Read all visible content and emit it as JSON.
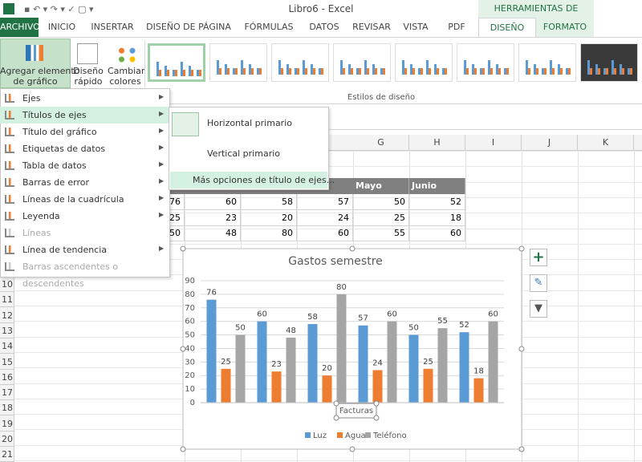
{
  "window": {
    "title": "Libro6 - Excel",
    "tools_header": "HERRAMIENTAS DE GRÁFICOS"
  },
  "tabs": [
    "ARCHIVO",
    "INICIO",
    "INSERTAR",
    "DISEÑO DE PÁGINA",
    "FÓRMULAS",
    "DATOS",
    "REVISAR",
    "VISTA",
    "PDF",
    "DISEÑO",
    "FORMATO"
  ],
  "ribbon": {
    "buttons": [
      [
        "Agregar elemento",
        "de gráfico"
      ],
      [
        "Diseño",
        "rápido"
      ],
      [
        "Cambiar",
        "colores"
      ]
    ],
    "group_label": "Estilos de diseño"
  },
  "menu": {
    "items": [
      "Ejes",
      "Títulos de ejes",
      "Título del gráfico",
      "Etiquetas de datos",
      "Tabla de datos",
      "Barras de error",
      "Líneas de la cuadrícula",
      "Leyenda",
      "Líneas",
      "Línea de tendencia",
      "Barras ascendentes o descendentes"
    ]
  },
  "submenu": {
    "items": [
      "Horizontal primario",
      "Vertical primario",
      "Más opciones de título de ejes..."
    ]
  },
  "sheet": {
    "columns": [
      "G",
      "H",
      "I",
      "J",
      "K"
    ],
    "row_numbers": [
      10,
      11,
      12,
      13,
      14,
      15,
      16,
      17,
      18,
      19,
      20,
      21
    ],
    "table": {
      "headers": [
        "Mayo",
        "Junio"
      ],
      "rows": [
        [
          76,
          60,
          58,
          57,
          50,
          52
        ],
        [
          25,
          23,
          20,
          24,
          25,
          18
        ],
        [
          50,
          48,
          80,
          60,
          55,
          60
        ]
      ]
    }
  },
  "chart_data": {
    "type": "bar",
    "title": "Gastos semestre",
    "x_axis_title": "Facturas",
    "categories": [
      null,
      null,
      null,
      null,
      null,
      null
    ],
    "series": [
      {
        "name": "Luz",
        "color": "#5b9bd5",
        "values": [
          76,
          60,
          58,
          57,
          50,
          52
        ]
      },
      {
        "name": "Agua",
        "color": "#ed7d31",
        "values": [
          25,
          23,
          20,
          24,
          25,
          18
        ]
      },
      {
        "name": "Teléfono",
        "color": "#a5a5a5",
        "values": [
          50,
          48,
          80,
          60,
          55,
          60
        ]
      }
    ],
    "ylim": [
      0,
      90
    ],
    "yticks": [
      0,
      10,
      20,
      30,
      40,
      50,
      60,
      70,
      80,
      90
    ],
    "grid": true,
    "legend": "bottom",
    "data_labels": true
  }
}
